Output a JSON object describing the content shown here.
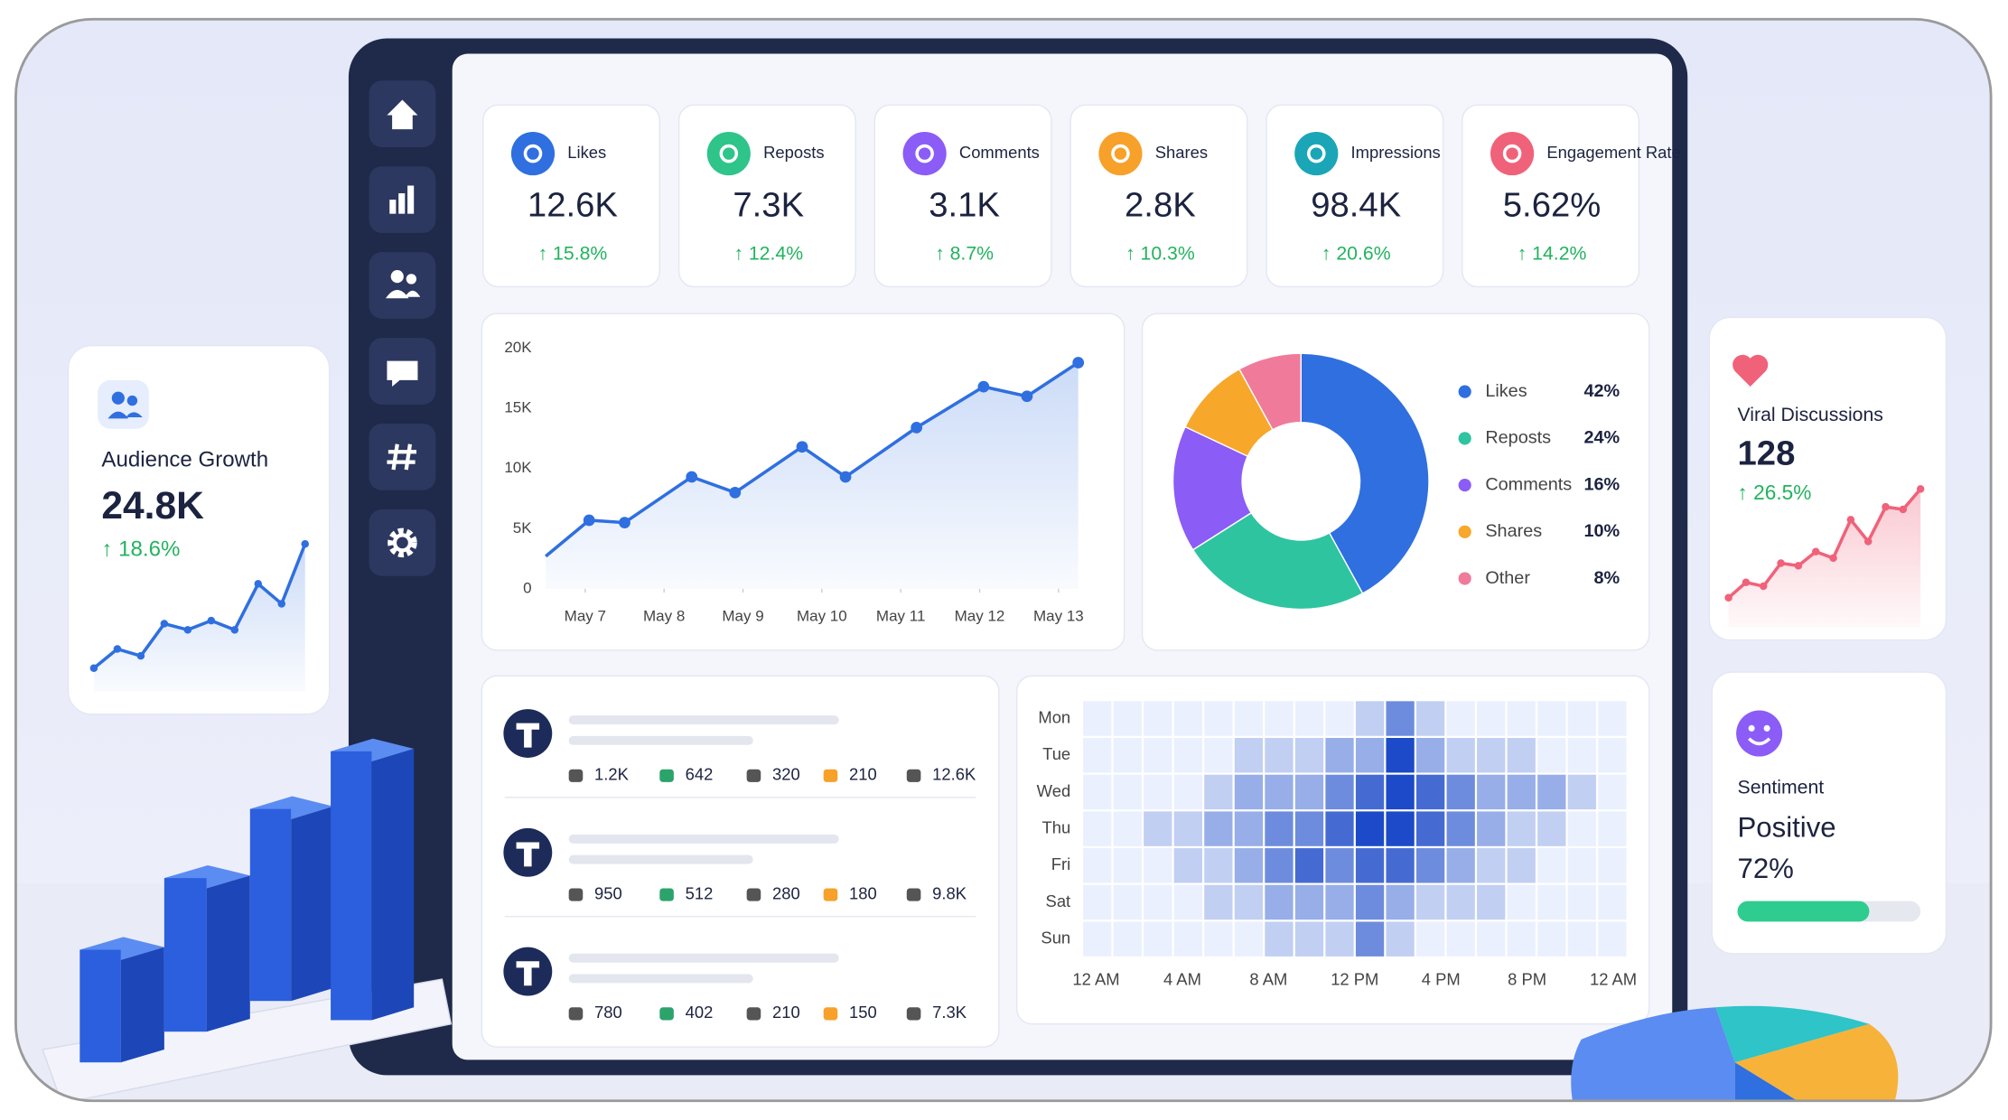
{
  "kpis": [
    {
      "label": "Likes",
      "value": "12.6K",
      "change": "↑ 15.8%"
    },
    {
      "label": "Reposts",
      "value": "7.3K",
      "change": "↑ 12.4%"
    },
    {
      "label": "Comments",
      "value": "3.1K",
      "change": "↑ 8.7%"
    },
    {
      "label": "Shares",
      "value": "2.8K",
      "change": "↑ 10.3%"
    },
    {
      "label": "Impressions",
      "value": "98.4K",
      "change": "↑ 20.6%"
    },
    {
      "label": "Engagement Rate",
      "value": "5.62%",
      "change": "↑ 14.2%"
    }
  ],
  "audience_growth": {
    "title": "Audience Growth",
    "value": "24.8K",
    "change": "↑ 18.6%",
    "trend": [
      15,
      27.5,
      23,
      44,
      40,
      46,
      40,
      70,
      57,
      96
    ]
  },
  "viral_discussions": {
    "title": "Viral Discussions",
    "value": "128",
    "change": "↑ 26.5%",
    "trend": [
      23,
      35,
      32,
      50,
      48,
      59,
      54,
      84,
      67,
      94,
      92,
      108
    ]
  },
  "sentiment": {
    "title": "Sentiment",
    "label": "Positive",
    "value": 72,
    "value_label": "72%"
  },
  "posts": [
    {
      "likes": "1.2K",
      "reposts": "642",
      "comments": "320",
      "shares": "210",
      "views": "12.6K"
    },
    {
      "likes": "950",
      "reposts": "512",
      "comments": "280",
      "shares": "180",
      "views": "9.8K"
    },
    {
      "likes": "780",
      "reposts": "402",
      "comments": "210",
      "shares": "150",
      "views": "7.3K"
    }
  ],
  "chart_data": [
    {
      "type": "line",
      "x": [
        6.5,
        7.05,
        7.5,
        8.35,
        8.9,
        9.75,
        10.3,
        11.2,
        12.05,
        12.6,
        13.25
      ],
      "series": [
        {
          "color": "#2f6fe0",
          "values": [
            2700,
            5700,
            5500,
            9300,
            8000,
            11800,
            9300,
            13400,
            16800,
            16000,
            18800
          ]
        }
      ],
      "xlim": [
        6.5,
        13.25
      ],
      "xticks": [
        {
          "value": 7,
          "label": "May 7"
        },
        {
          "value": 8,
          "label": "May 8"
        },
        {
          "value": 9,
          "label": "May 9"
        },
        {
          "value": 10,
          "label": "May 10"
        },
        {
          "value": 11,
          "label": "May 11"
        },
        {
          "value": 12,
          "label": "May 12"
        },
        {
          "value": 13,
          "label": "May 13"
        }
      ],
      "ylim": [
        0,
        20000
      ],
      "yticks": [
        0,
        {
          "value": 5000,
          "label": "5K"
        },
        {
          "value": 10000,
          "label": "10K"
        },
        {
          "value": 15000,
          "label": "15K"
        },
        {
          "value": 20000,
          "label": "20K"
        }
      ],
      "grid": false
    },
    {
      "type": "pie",
      "donut": true,
      "categories": [
        "Likes",
        "Reposts",
        "Comments",
        "Shares",
        "Other"
      ],
      "values": [
        42,
        24,
        16,
        10,
        8
      ],
      "value_labels": [
        "42%",
        "24%",
        "16%",
        "10%",
        "8%"
      ],
      "colors": [
        "#2f6fe0",
        "#2ec4a0",
        "#8b5cf6",
        "#f7a72a",
        "#f07a9a"
      ]
    },
    {
      "type": "heatmap",
      "color": "#1c4ac8",
      "rows": [
        "Mon",
        "Tue",
        "Wed",
        "Thu",
        "Fri",
        "Sat",
        "Sun"
      ],
      "x_labels": [
        "12 AM",
        "4 AM",
        "8 AM",
        "12 PM",
        "4 PM",
        "8 PM",
        "12 AM"
      ],
      "values": [
        [
          0,
          0,
          0,
          0,
          0,
          0,
          0,
          0,
          0,
          1,
          3,
          1,
          0,
          0,
          0,
          0,
          0,
          0
        ],
        [
          0,
          0,
          0,
          0,
          0,
          1,
          1,
          1,
          2,
          2,
          5,
          2,
          1,
          1,
          1,
          0,
          0,
          0
        ],
        [
          0,
          0,
          0,
          0,
          1,
          2,
          2,
          2,
          3,
          4,
          5,
          4,
          3,
          2,
          2,
          2,
          1,
          0
        ],
        [
          0,
          0,
          1,
          1,
          2,
          2,
          3,
          3,
          4,
          5,
          5,
          4,
          3,
          2,
          1,
          1,
          0,
          0
        ],
        [
          0,
          0,
          0,
          1,
          1,
          2,
          3,
          4,
          3,
          4,
          4,
          3,
          2,
          1,
          1,
          0,
          0,
          0
        ],
        [
          0,
          0,
          0,
          0,
          1,
          1,
          2,
          2,
          2,
          3,
          2,
          1,
          1,
          1,
          0,
          0,
          0,
          0
        ],
        [
          0,
          0,
          0,
          0,
          0,
          0,
          1,
          1,
          1,
          3,
          1,
          0,
          0,
          0,
          0,
          0,
          0,
          0
        ]
      ]
    }
  ]
}
